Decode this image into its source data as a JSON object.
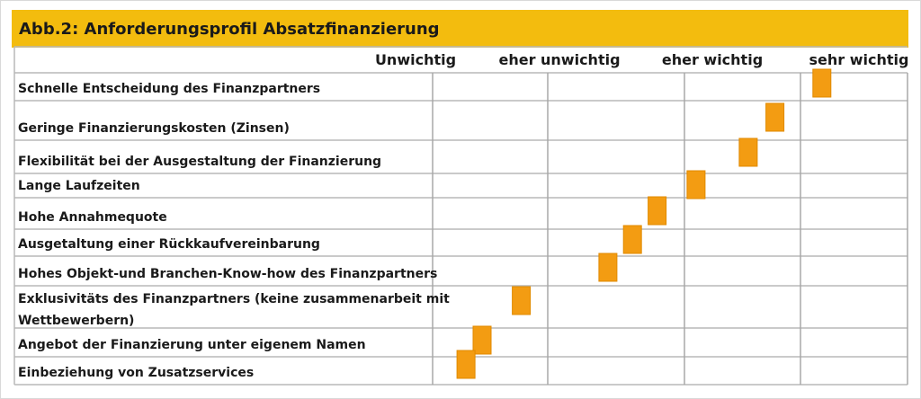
{
  "chart_data": {
    "type": "scatter",
    "title": "Abb.2: Anforderungsprofil Absatzfinanzierung",
    "xlabel": "",
    "ylabel": "",
    "columns": [
      "Unwichtig",
      "eher unwichtig",
      "eher wichtig",
      "sehr wichtig"
    ],
    "xlim": [
      0,
      4
    ],
    "grid": true,
    "legend": "none",
    "marker_color": "#f39c12",
    "rows": [
      {
        "label": "Schnelle Entscheidung des Finanzpartners",
        "value": 3.2
      },
      {
        "label": "Geringe Finanzierungskosten (Zinsen)",
        "value": 2.78
      },
      {
        "label": "Flexibilität bei der Ausgestaltung der Finanzierung",
        "value": 2.55
      },
      {
        "label": "Lange Laufzeiten",
        "value": 2.1
      },
      {
        "label": "Hohe Annahmequote",
        "value": 1.8
      },
      {
        "label": "Ausgetaltung einer Rückkaufvereinbarung",
        "value": 1.62
      },
      {
        "label": "Hohes Objekt-und Branchen-Know-how des Finanzpartners",
        "value": 1.44
      },
      {
        "label": "Exklusivitäts des Finanzpartners (keine zusammenarbeit mit Wettbewerbern)",
        "value": 0.77
      },
      {
        "label": "Angebot der Finanzierung unter eigenem Namen",
        "value": 0.43
      },
      {
        "label": "Einbeziehung von Zusatzservices",
        "value": 0.29
      }
    ]
  }
}
